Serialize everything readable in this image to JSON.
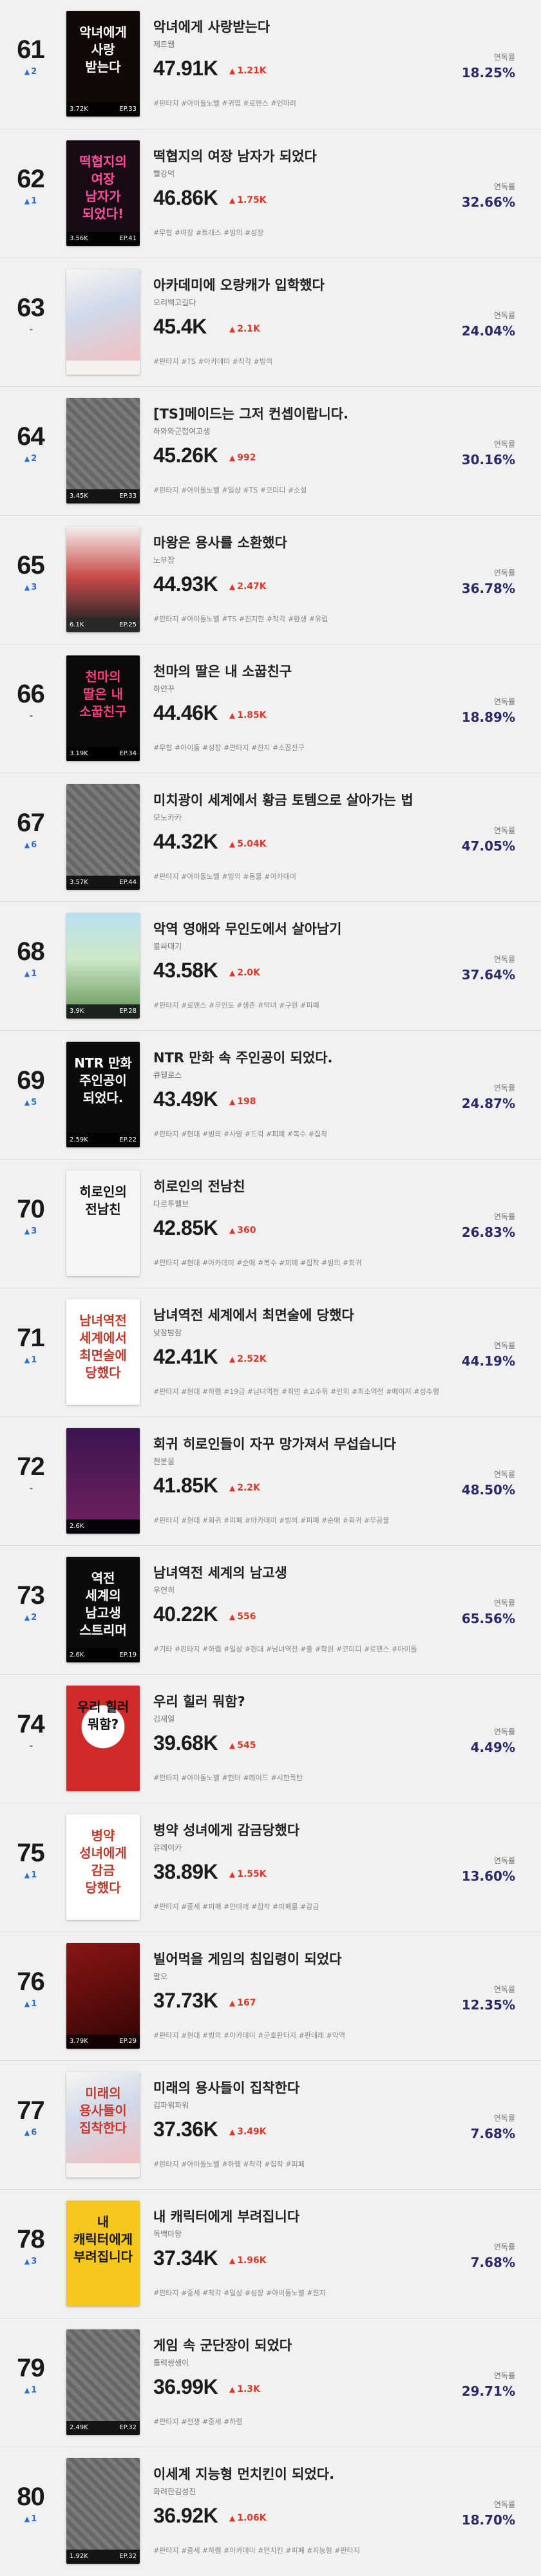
{
  "labels": {
    "rate_label": "연독률"
  },
  "colors": {
    "increase": "#e0362a",
    "rank_up": "#2f6fd0",
    "rate": "#2a2a6a"
  },
  "items": [
    {
      "rank": "61",
      "change": "2",
      "dir": "up",
      "title": "악녀에게 사랑받는다",
      "author": "제트웹",
      "views": "47.91K",
      "increase": "1.21K",
      "tags": "#판타지 #아이돌노벨 #귀엽 #로맨스 #인마려",
      "rate": "18.25%",
      "cover": {
        "text": "악녀에게 사랑 받는다",
        "views": "3.72K",
        "ep": "EP.33",
        "style": "dark-red"
      }
    },
    {
      "rank": "62",
      "change": "1",
      "dir": "up",
      "title": "떡협지의 여장 남자가 되었다",
      "author": "빨강먹",
      "views": "46.86K",
      "increase": "1.75K",
      "tags": "#무협 #여장 #트래스 #빙의 #성장",
      "rate": "32.66%",
      "cover": {
        "text": "떡협지의 여장 남자가 되었다!",
        "views": "3.56K",
        "ep": "EP.41",
        "style": "dark-pink"
      }
    },
    {
      "rank": "63",
      "change": "-",
      "dir": "flat",
      "title": "아카데미에 오랑캐가 입학했다",
      "author": "오리백고길다",
      "views": "45.4K",
      "increase": "2.1K",
      "tags": "#판타지 #TS #아카데미 #착각 #빙의",
      "rate": "24.04%",
      "cover": {
        "text": "",
        "views": "",
        "ep": "",
        "style": "art-white"
      }
    },
    {
      "rank": "64",
      "change": "2",
      "dir": "up",
      "title": "[TS]메이드는 그저 컨셉이랍니다.",
      "author": "하와와군첩여고생",
      "views": "45.26K",
      "increase": "992",
      "tags": "#판타지 #아이돌노벨 #일상 #TS #코미디 #소설",
      "rate": "30.16%",
      "cover": {
        "text": "",
        "views": "3.45K",
        "ep": "EP.33",
        "style": "placeholder"
      }
    },
    {
      "rank": "65",
      "change": "3",
      "dir": "up",
      "title": "마왕은 용사를 소환했다",
      "author": "노부장",
      "views": "44.93K",
      "increase": "2.47K",
      "tags": "#판타지 #아이돌노벨 #TS #진지한 #착각 #환생 #유럽",
      "rate": "36.78%",
      "cover": {
        "text": "",
        "views": "6.1K",
        "ep": "EP.25",
        "style": "art-light"
      }
    },
    {
      "rank": "66",
      "change": "-",
      "dir": "flat",
      "title": "천마의 딸은 내 소꿉친구",
      "author": "하얀꾸",
      "views": "44.46K",
      "increase": "1.85K",
      "tags": "#무협 #아이돌 #성장 #판타지 #진지 #소꿉친구",
      "rate": "18.89%",
      "cover": {
        "text": "천마의 딸은 내 소꿉친구",
        "views": "3.19K",
        "ep": "EP.34",
        "style": "black-pink"
      }
    },
    {
      "rank": "67",
      "change": "6",
      "dir": "up",
      "title": "미치광이 세계에서 황금 토템으로 살아가는 법",
      "author": "모노카카",
      "views": "44.32K",
      "increase": "5.04K",
      "tags": "#판타지 #아이돌노벨 #빙의 #동물 #아카데미",
      "rate": "47.05%",
      "cover": {
        "text": "",
        "views": "3.57K",
        "ep": "EP.44",
        "style": "placeholder"
      }
    },
    {
      "rank": "68",
      "change": "1",
      "dir": "up",
      "title": "악역 영애와 무인도에서 살아남기",
      "author": "불싸대기",
      "views": "43.58K",
      "increase": "2.0K",
      "tags": "#판타지 #로맨스 #무인도 #생존 #악녀 #구원 #피폐",
      "rate": "37.64%",
      "cover": {
        "text": "",
        "views": "3.9K",
        "ep": "EP.28",
        "style": "art-green"
      }
    },
    {
      "rank": "69",
      "change": "5",
      "dir": "up",
      "title": "NTR 만화 속 주인공이 되었다.",
      "author": "큐웰로스",
      "views": "43.49K",
      "increase": "198",
      "tags": "#판타지 #현대 #빙의 #사망 #드럭 #피폐 #복수 #집착",
      "rate": "24.87%",
      "cover": {
        "text": "NTR 만화 주인공이 되었다.",
        "views": "2.59K",
        "ep": "EP.22",
        "style": "black-white"
      }
    },
    {
      "rank": "70",
      "change": "3",
      "dir": "up",
      "title": "히로인의 전남친",
      "author": "다르투펠브",
      "views": "42.85K",
      "increase": "360",
      "tags": "#판타지 #현대 #아카데미 #순애 #복수 #피폐 #집착 #빙의 #회귀",
      "rate": "26.83%",
      "cover": {
        "text": "히로인의 전남친",
        "views": "",
        "ep": "",
        "style": "white-black"
      }
    },
    {
      "rank": "71",
      "change": "1",
      "dir": "up",
      "title": "남녀역전 세계에서 최면술에 당했다",
      "author": "낮잠밤잠",
      "views": "42.41K",
      "increase": "2.52K",
      "tags": "#판타지 #현대 #하렘 #19금 #남녀역전 #최면 #고수위 #인외 #최소역전 #메이저 #성추행",
      "rate": "44.19%",
      "cover": {
        "text": "남녀역전 세계에서 최면술에 당했다",
        "views": "",
        "ep": "",
        "style": "white-red"
      }
    },
    {
      "rank": "72",
      "change": "-",
      "dir": "flat",
      "title": "회귀 히로인들이 자꾸 망가져서 무섭습니다",
      "author": "천분물",
      "views": "41.85K",
      "increase": "2.2K",
      "tags": "#판타지 #현대 #회귀 #피폐 #아카데미 #빙의 #피폐 #순애 #회귀 #무공물",
      "rate": "48.50%",
      "cover": {
        "text": "",
        "views": "2.6K",
        "ep": "",
        "style": "art-purple"
      }
    },
    {
      "rank": "73",
      "change": "2",
      "dir": "up",
      "title": "남녀역전 세계의 남고생",
      "author": "우연히",
      "views": "40.22K",
      "increase": "556",
      "tags": "#기타 #판타지 #하렘 #일상 #현대 #남녀역전 #출 #학원 #코미디 #로맨스 #아이돌",
      "rate": "65.56%",
      "cover": {
        "text": "역전 세계의 남고생 스트리머",
        "views": "2.6K",
        "ep": "EP.19",
        "style": "black-white"
      }
    },
    {
      "rank": "74",
      "change": "-",
      "dir": "flat",
      "title": "우리 힐러 뭐함?",
      "author": "김새얼",
      "views": "39.68K",
      "increase": "545",
      "tags": "#판타지 #아이돌노벨 #헌터 #레이드 #시한폭탄",
      "rate": "4.49%",
      "cover": {
        "text": "우리 힐러 뭐함?",
        "views": "",
        "ep": "",
        "style": "red-bubble"
      }
    },
    {
      "rank": "75",
      "change": "1",
      "dir": "up",
      "title": "병약 성녀에게 감금당했다",
      "author": "유레이카",
      "views": "38.89K",
      "increase": "1.55K",
      "tags": "#판타지 #중세 #피폐 #얀데레 #집착 #피폐물 #감금",
      "rate": "13.60%",
      "cover": {
        "text": "병약 성녀에게 감금 당했다",
        "views": "",
        "ep": "",
        "style": "white-red"
      }
    },
    {
      "rank": "76",
      "change": "1",
      "dir": "up",
      "title": "빌어먹을 게임의 침입령이 되었다",
      "author": "팔오",
      "views": "37.73K",
      "increase": "167",
      "tags": "#판타지 #현대 #빙의 #아카데미 #군호판타지 #판데레 #악역",
      "rate": "12.35%",
      "cover": {
        "text": "",
        "views": "3.79K",
        "ep": "EP.29",
        "style": "art-red"
      }
    },
    {
      "rank": "77",
      "change": "6",
      "dir": "up",
      "title": "미래의 용사들이 집착한다",
      "author": "김파워파워",
      "views": "37.36K",
      "increase": "3.49K",
      "tags": "#판타지 #아이돌노벨 #하렘 #착각 #집착 #피폐",
      "rate": "7.68%",
      "cover": {
        "text": "미래의 용사들이 집착한다",
        "views": "",
        "ep": "",
        "style": "art-white"
      }
    },
    {
      "rank": "78",
      "change": "3",
      "dir": "up",
      "title": "내 캐릭터에게 부려집니다",
      "author": "독백마왕",
      "views": "37.34K",
      "increase": "1.96K",
      "tags": "#판타지 #중세 #착각 #일상 #성장 #아이돌노벨 #진지",
      "rate": "7.68%",
      "cover": {
        "text": "내 캐릭터에게 부려집니다",
        "views": "",
        "ep": "",
        "style": "yellow"
      }
    },
    {
      "rank": "79",
      "change": "1",
      "dir": "up",
      "title": "게임 속 군단장이 되었다",
      "author": "틀력쌍생이",
      "views": "36.99K",
      "increase": "1.3K",
      "tags": "#판타지 #전쟁 #중세 #하렘",
      "rate": "29.71%",
      "cover": {
        "text": "",
        "views": "2.49K",
        "ep": "EP.32",
        "style": "placeholder"
      }
    },
    {
      "rank": "80",
      "change": "1",
      "dir": "up",
      "title": "이세계 지능형 먼치킨이 되었다.",
      "author": "화려한김성진",
      "views": "36.92K",
      "increase": "1.06K",
      "tags": "#판타지 #중세 #하렘 #아카데미 #먼치킨 #피폐 #지능형 #판타지",
      "rate": "18.70%",
      "cover": {
        "text": "",
        "views": "1.92K",
        "ep": "EP.32",
        "style": "placeholder"
      }
    }
  ]
}
